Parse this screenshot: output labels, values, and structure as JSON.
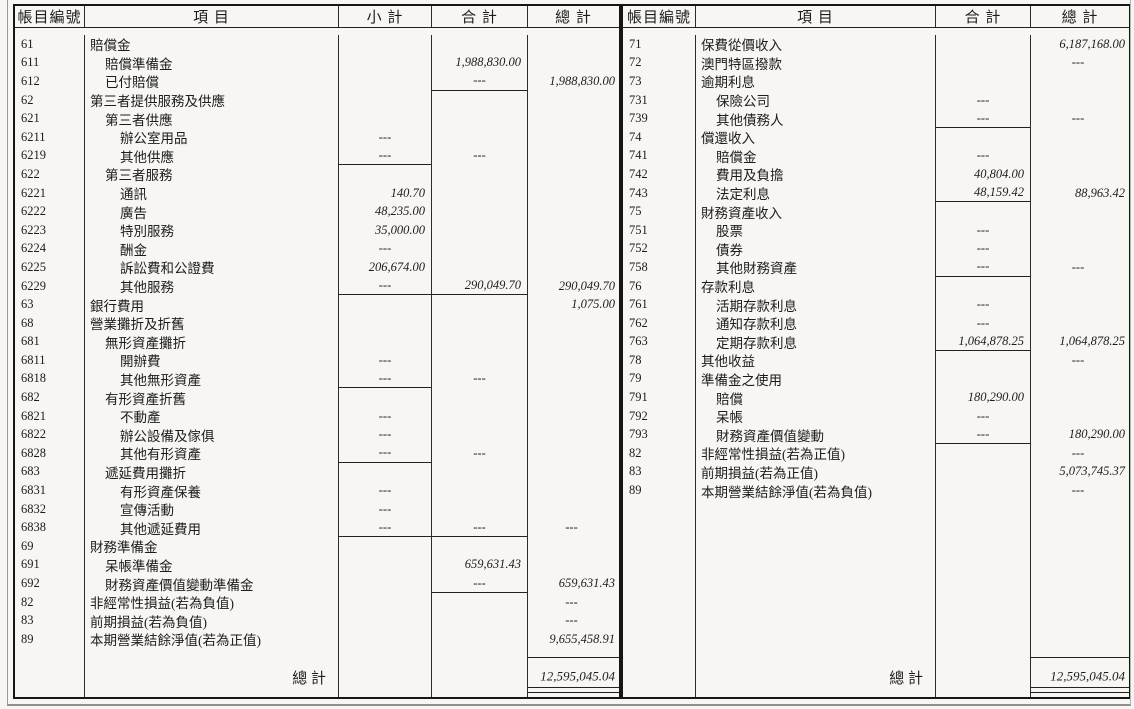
{
  "page": {
    "background": "#f7f6f2",
    "ink": "#1c1c1c",
    "border": "#2b2b2b"
  },
  "left_table": {
    "headers": {
      "account_code": "帳目編號",
      "item": "項 目",
      "subtotal": "小 計",
      "total": "合 計",
      "grand_total": "總 計"
    },
    "rows": [
      {
        "code": "61",
        "item": "賠償金",
        "indent": 0
      },
      {
        "code": "611",
        "item": "賠償準備金",
        "indent": 1,
        "total": "1,988,830.00"
      },
      {
        "code": "612",
        "item": "已付賠償",
        "indent": 1,
        "total": "---",
        "grand_total": "1,988,830.00",
        "underline": [
          "total"
        ]
      },
      {
        "code": "62",
        "item": "第三者提供服務及供應",
        "indent": 0
      },
      {
        "code": "621",
        "item": "第三者供應",
        "indent": 1
      },
      {
        "code": "6211",
        "item": "辦公室用品",
        "indent": 2,
        "subtotal": "---"
      },
      {
        "code": "6219",
        "item": "其他供應",
        "indent": 2,
        "subtotal": "---",
        "total": "---",
        "underline": [
          "subtotal"
        ]
      },
      {
        "code": "622",
        "item": "第三者服務",
        "indent": 1
      },
      {
        "code": "6221",
        "item": "通訊",
        "indent": 2,
        "subtotal": "140.70"
      },
      {
        "code": "6222",
        "item": "廣告",
        "indent": 2,
        "subtotal": "48,235.00"
      },
      {
        "code": "6223",
        "item": "特別服務",
        "indent": 2,
        "subtotal": "35,000.00"
      },
      {
        "code": "6224",
        "item": "酬金",
        "indent": 2,
        "subtotal": "---"
      },
      {
        "code": "6225",
        "item": "訴訟費和公證費",
        "indent": 2,
        "subtotal": "206,674.00"
      },
      {
        "code": "6229",
        "item": "其他服務",
        "indent": 2,
        "subtotal": "---",
        "total": "290,049.70",
        "grand_total": "290,049.70",
        "underline": [
          "subtotal",
          "total"
        ]
      },
      {
        "code": "63",
        "item": "銀行費用",
        "indent": 0,
        "grand_total": "1,075.00"
      },
      {
        "code": "68",
        "item": "營業攤折及折舊",
        "indent": 0
      },
      {
        "code": "681",
        "item": "無形資產攤折",
        "indent": 1
      },
      {
        "code": "6811",
        "item": "開辦費",
        "indent": 2,
        "subtotal": "---"
      },
      {
        "code": "6818",
        "item": "其他無形資產",
        "indent": 2,
        "subtotal": "---",
        "total": "---",
        "underline": [
          "subtotal"
        ]
      },
      {
        "code": "682",
        "item": "有形資產折舊",
        "indent": 1
      },
      {
        "code": "6821",
        "item": "不動產",
        "indent": 2,
        "subtotal": "---"
      },
      {
        "code": "6822",
        "item": "辦公設備及傢俱",
        "indent": 2,
        "subtotal": "---"
      },
      {
        "code": "6828",
        "item": "其他有形資產",
        "indent": 2,
        "subtotal": "---",
        "total": "---",
        "underline": [
          "subtotal"
        ]
      },
      {
        "code": "683",
        "item": "遞延費用攤折",
        "indent": 1
      },
      {
        "code": "6831",
        "item": "有形資產保養",
        "indent": 2,
        "subtotal": "---"
      },
      {
        "code": "6832",
        "item": "宣傳活動",
        "indent": 2,
        "subtotal": "---"
      },
      {
        "code": "6838",
        "item": "其他遞延費用",
        "indent": 2,
        "subtotal": "---",
        "total": "---",
        "grand_total": "---",
        "underline": [
          "subtotal",
          "total"
        ]
      },
      {
        "code": "69",
        "item": "財務準備金",
        "indent": 0
      },
      {
        "code": "691",
        "item": "呆帳準備金",
        "indent": 1,
        "total": "659,631.43"
      },
      {
        "code": "692",
        "item": "財務資產價值變動準備金",
        "indent": 1,
        "total": "---",
        "grand_total": "659,631.43",
        "underline": [
          "total"
        ]
      },
      {
        "code": "82",
        "item": "非經常性損益(若為負值)",
        "indent": 0,
        "grand_total": "---"
      },
      {
        "code": "83",
        "item": "前期損益(若為負值)",
        "indent": 0,
        "grand_total": "---"
      },
      {
        "code": "89",
        "item": "本期營業結餘淨值(若為正值)",
        "indent": 0,
        "grand_total": "9,655,458.91"
      }
    ],
    "total_label": "總 計",
    "total_value": "12,595,045.04"
  },
  "right_table": {
    "headers": {
      "account_code": "帳目編號",
      "item": "項 目",
      "total": "合 計",
      "grand_total": "總 計"
    },
    "rows": [
      {
        "code": "71",
        "item": "保費從價收入",
        "indent": 0,
        "grand_total": "6,187,168.00"
      },
      {
        "code": "72",
        "item": "澳門特區撥款",
        "indent": 0,
        "grand_total": "---"
      },
      {
        "code": "73",
        "item": "逾期利息",
        "indent": 0
      },
      {
        "code": "731",
        "item": "保險公司",
        "indent": 1,
        "total": "---"
      },
      {
        "code": "739",
        "item": "其他債務人",
        "indent": 1,
        "total": "---",
        "grand_total": "---",
        "underline": [
          "total"
        ]
      },
      {
        "code": "74",
        "item": "償還收入",
        "indent": 0
      },
      {
        "code": "741",
        "item": "賠償金",
        "indent": 1,
        "total": "---"
      },
      {
        "code": "742",
        "item": "費用及負擔",
        "indent": 1,
        "total": "40,804.00"
      },
      {
        "code": "743",
        "item": "法定利息",
        "indent": 1,
        "total": "48,159.42",
        "grand_total": "88,963.42",
        "underline": [
          "total"
        ]
      },
      {
        "code": "75",
        "item": "財務資產收入",
        "indent": 0
      },
      {
        "code": "751",
        "item": "股票",
        "indent": 1,
        "total": "---"
      },
      {
        "code": "752",
        "item": "債券",
        "indent": 1,
        "total": "---"
      },
      {
        "code": "758",
        "item": "其他財務資產",
        "indent": 1,
        "total": "---",
        "grand_total": "---",
        "underline": [
          "total"
        ]
      },
      {
        "code": "76",
        "item": "存款利息",
        "indent": 0
      },
      {
        "code": "761",
        "item": "活期存款利息",
        "indent": 1,
        "total": "---"
      },
      {
        "code": "762",
        "item": "通知存款利息",
        "indent": 1,
        "total": "---"
      },
      {
        "code": "763",
        "item": "定期存款利息",
        "indent": 1,
        "total": "1,064,878.25",
        "grand_total": "1,064,878.25",
        "underline": [
          "total"
        ]
      },
      {
        "code": "78",
        "item": "其他收益",
        "indent": 0,
        "grand_total": "---"
      },
      {
        "code": "79",
        "item": "準備金之使用",
        "indent": 0
      },
      {
        "code": "791",
        "item": "賠償",
        "indent": 1,
        "total": "180,290.00"
      },
      {
        "code": "792",
        "item": "呆帳",
        "indent": 1,
        "total": "---"
      },
      {
        "code": "793",
        "item": "財務資產價值變動",
        "indent": 1,
        "total": "---",
        "grand_total": "180,290.00",
        "underline": [
          "total"
        ]
      },
      {
        "code": "82",
        "item": "非經常性損益(若為正值)",
        "indent": 0,
        "grand_total": "---"
      },
      {
        "code": "83",
        "item": "前期損益(若為正值)",
        "indent": 0,
        "grand_total": "5,073,745.37"
      },
      {
        "code": "89",
        "item": "本期營業結餘淨值(若為負值)",
        "indent": 0,
        "grand_total": "---"
      }
    ],
    "total_label": "總 計",
    "total_value": "12,595,045.04"
  }
}
